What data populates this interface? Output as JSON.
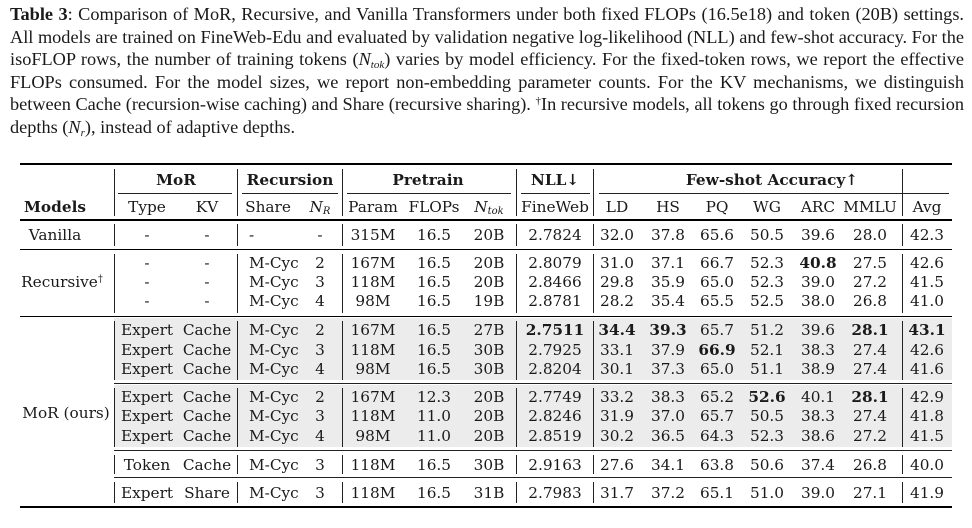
{
  "caption": {
    "label": "Table 3",
    "sentences": [
      ": Comparison of MoR, Recursive, and Vanilla Transformers under both fixed FLOPs (16.5e18) and token (20B) settings. All models are trained on FineWeb-Edu and evaluated by validation negative log-likelihood (NLL) and few-shot accuracy. For the isoFLOP rows, the number of training tokens (",
      "N",
      "tok",
      ") varies by model efficiency. For the fixed-token rows, we report the effective FLOPs consumed. For the model sizes, we report non-embedding parameter counts. For the KV mechanisms, we distinguish between Cache (recursion-wise caching) and Share (recursive sharing). ",
      "†",
      "In recursive models, all tokens go through fixed recursion depths (",
      "N",
      "r",
      "), instead of adaptive depths."
    ]
  },
  "groups": {
    "mor": "MoR",
    "recursion": "Recursion",
    "pretrain": "Pretrain",
    "nll": "NLL↓",
    "fewshot": "Few-shot Accuracy↑"
  },
  "columns": {
    "models": "Models",
    "type": "Type",
    "kv": "KV",
    "share": "Share",
    "nr_base": "N",
    "nr_sub": "R",
    "param": "Param",
    "flops": "FLOPs",
    "ntok_base": "N",
    "ntok_sub": "tok",
    "fineweb": "FineWeb",
    "ld": "LD",
    "hs": "HS",
    "pq": "PQ",
    "wg": "WG",
    "arc": "ARC",
    "mmlu": "MMLU",
    "avg": "Avg"
  },
  "model_labels": {
    "vanilla": "Vanilla",
    "recursive": "Recursive",
    "recursive_mark": "†",
    "mor": "MoR (ours)"
  },
  "rows": [
    [
      "-",
      "-",
      "-",
      "-",
      "315M",
      "16.5",
      "20B",
      "2.7824",
      "32.0",
      "37.8",
      "65.6",
      "50.5",
      "39.6",
      "28.0",
      "42.3"
    ],
    [
      "-",
      "-",
      "M-Cyc",
      "2",
      "167M",
      "16.5",
      "20B",
      "2.8079",
      "31.0",
      "37.1",
      "66.7",
      "52.3",
      "40.8",
      "27.5",
      "42.6"
    ],
    [
      "-",
      "-",
      "M-Cyc",
      "3",
      "118M",
      "16.5",
      "20B",
      "2.8466",
      "29.8",
      "35.9",
      "65.0",
      "52.3",
      "39.0",
      "27.2",
      "41.5"
    ],
    [
      "-",
      "-",
      "M-Cyc",
      "4",
      "98M",
      "16.5",
      "19B",
      "2.8781",
      "28.2",
      "35.4",
      "65.5",
      "52.5",
      "38.0",
      "26.8",
      "41.0"
    ],
    [
      "Expert",
      "Cache",
      "M-Cyc",
      "2",
      "167M",
      "16.5",
      "27B",
      "2.7511",
      "34.4",
      "39.3",
      "65.7",
      "51.2",
      "39.6",
      "28.1",
      "43.1"
    ],
    [
      "Expert",
      "Cache",
      "M-Cyc",
      "3",
      "118M",
      "16.5",
      "30B",
      "2.7925",
      "33.1",
      "37.9",
      "66.9",
      "52.1",
      "38.3",
      "27.4",
      "42.6"
    ],
    [
      "Expert",
      "Cache",
      "M-Cyc",
      "4",
      "98M",
      "16.5",
      "30B",
      "2.8204",
      "30.1",
      "37.3",
      "65.0",
      "51.1",
      "38.9",
      "27.4",
      "41.6"
    ],
    [
      "Expert",
      "Cache",
      "M-Cyc",
      "2",
      "167M",
      "12.3",
      "20B",
      "2.7749",
      "33.2",
      "38.3",
      "65.2",
      "52.6",
      "40.1",
      "28.1",
      "42.9"
    ],
    [
      "Expert",
      "Cache",
      "M-Cyc",
      "3",
      "118M",
      "11.0",
      "20B",
      "2.8246",
      "31.9",
      "37.0",
      "65.7",
      "50.5",
      "38.3",
      "27.4",
      "41.8"
    ],
    [
      "Expert",
      "Cache",
      "M-Cyc",
      "4",
      "98M",
      "11.0",
      "20B",
      "2.8519",
      "30.2",
      "36.5",
      "64.3",
      "52.3",
      "38.6",
      "27.2",
      "41.5"
    ],
    [
      "Token",
      "Cache",
      "M-Cyc",
      "3",
      "118M",
      "16.5",
      "30B",
      "2.9163",
      "27.6",
      "34.1",
      "63.8",
      "50.6",
      "37.4",
      "26.8",
      "40.0"
    ],
    [
      "Expert",
      "Share",
      "M-Cyc",
      "3",
      "118M",
      "16.5",
      "31B",
      "2.7983",
      "31.7",
      "37.2",
      "65.1",
      "51.0",
      "39.0",
      "27.1",
      "41.9"
    ]
  ],
  "bold_cells": [
    [
      1,
      12
    ],
    [
      4,
      7
    ],
    [
      4,
      8
    ],
    [
      4,
      9
    ],
    [
      4,
      13
    ],
    [
      4,
      14
    ],
    [
      5,
      10
    ],
    [
      7,
      11
    ],
    [
      7,
      13
    ]
  ]
}
